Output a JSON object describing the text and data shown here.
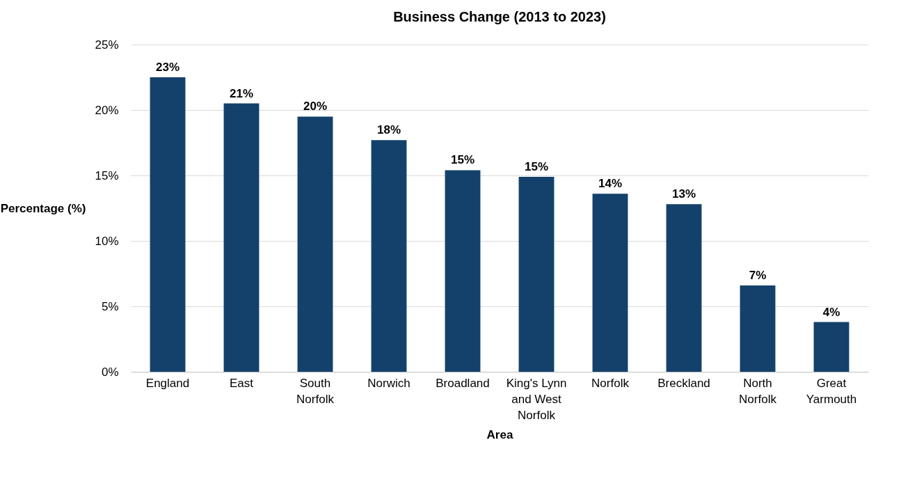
{
  "chart_data": {
    "type": "bar",
    "title": "Business Change (2013 to 2023)",
    "xlabel": "Area",
    "ylabel": "Percentage (%)",
    "categories": [
      "England",
      "East",
      "South Norfolk",
      "Norwich",
      "Broadland",
      "King's Lynn and West Norfolk",
      "Norfolk",
      "Breckland",
      "North Norfolk",
      "Great Yarmouth"
    ],
    "values": [
      22.5,
      20.5,
      19.5,
      17.7,
      15.4,
      14.9,
      13.6,
      12.8,
      6.6,
      3.8
    ],
    "value_labels": [
      "23%",
      "21%",
      "20%",
      "18%",
      "15%",
      "15%",
      "14%",
      "13%",
      "7%",
      "4%"
    ],
    "color": "#14416b",
    "ylim": [
      0,
      25
    ],
    "yticks": [
      {
        "value": 0,
        "label": "0%"
      },
      {
        "value": 5,
        "label": "5%"
      },
      {
        "value": 10,
        "label": "10%"
      },
      {
        "value": 15,
        "label": "15%"
      },
      {
        "value": 20,
        "label": "20%"
      },
      {
        "value": 25,
        "label": "25%"
      }
    ],
    "grid": "y"
  }
}
